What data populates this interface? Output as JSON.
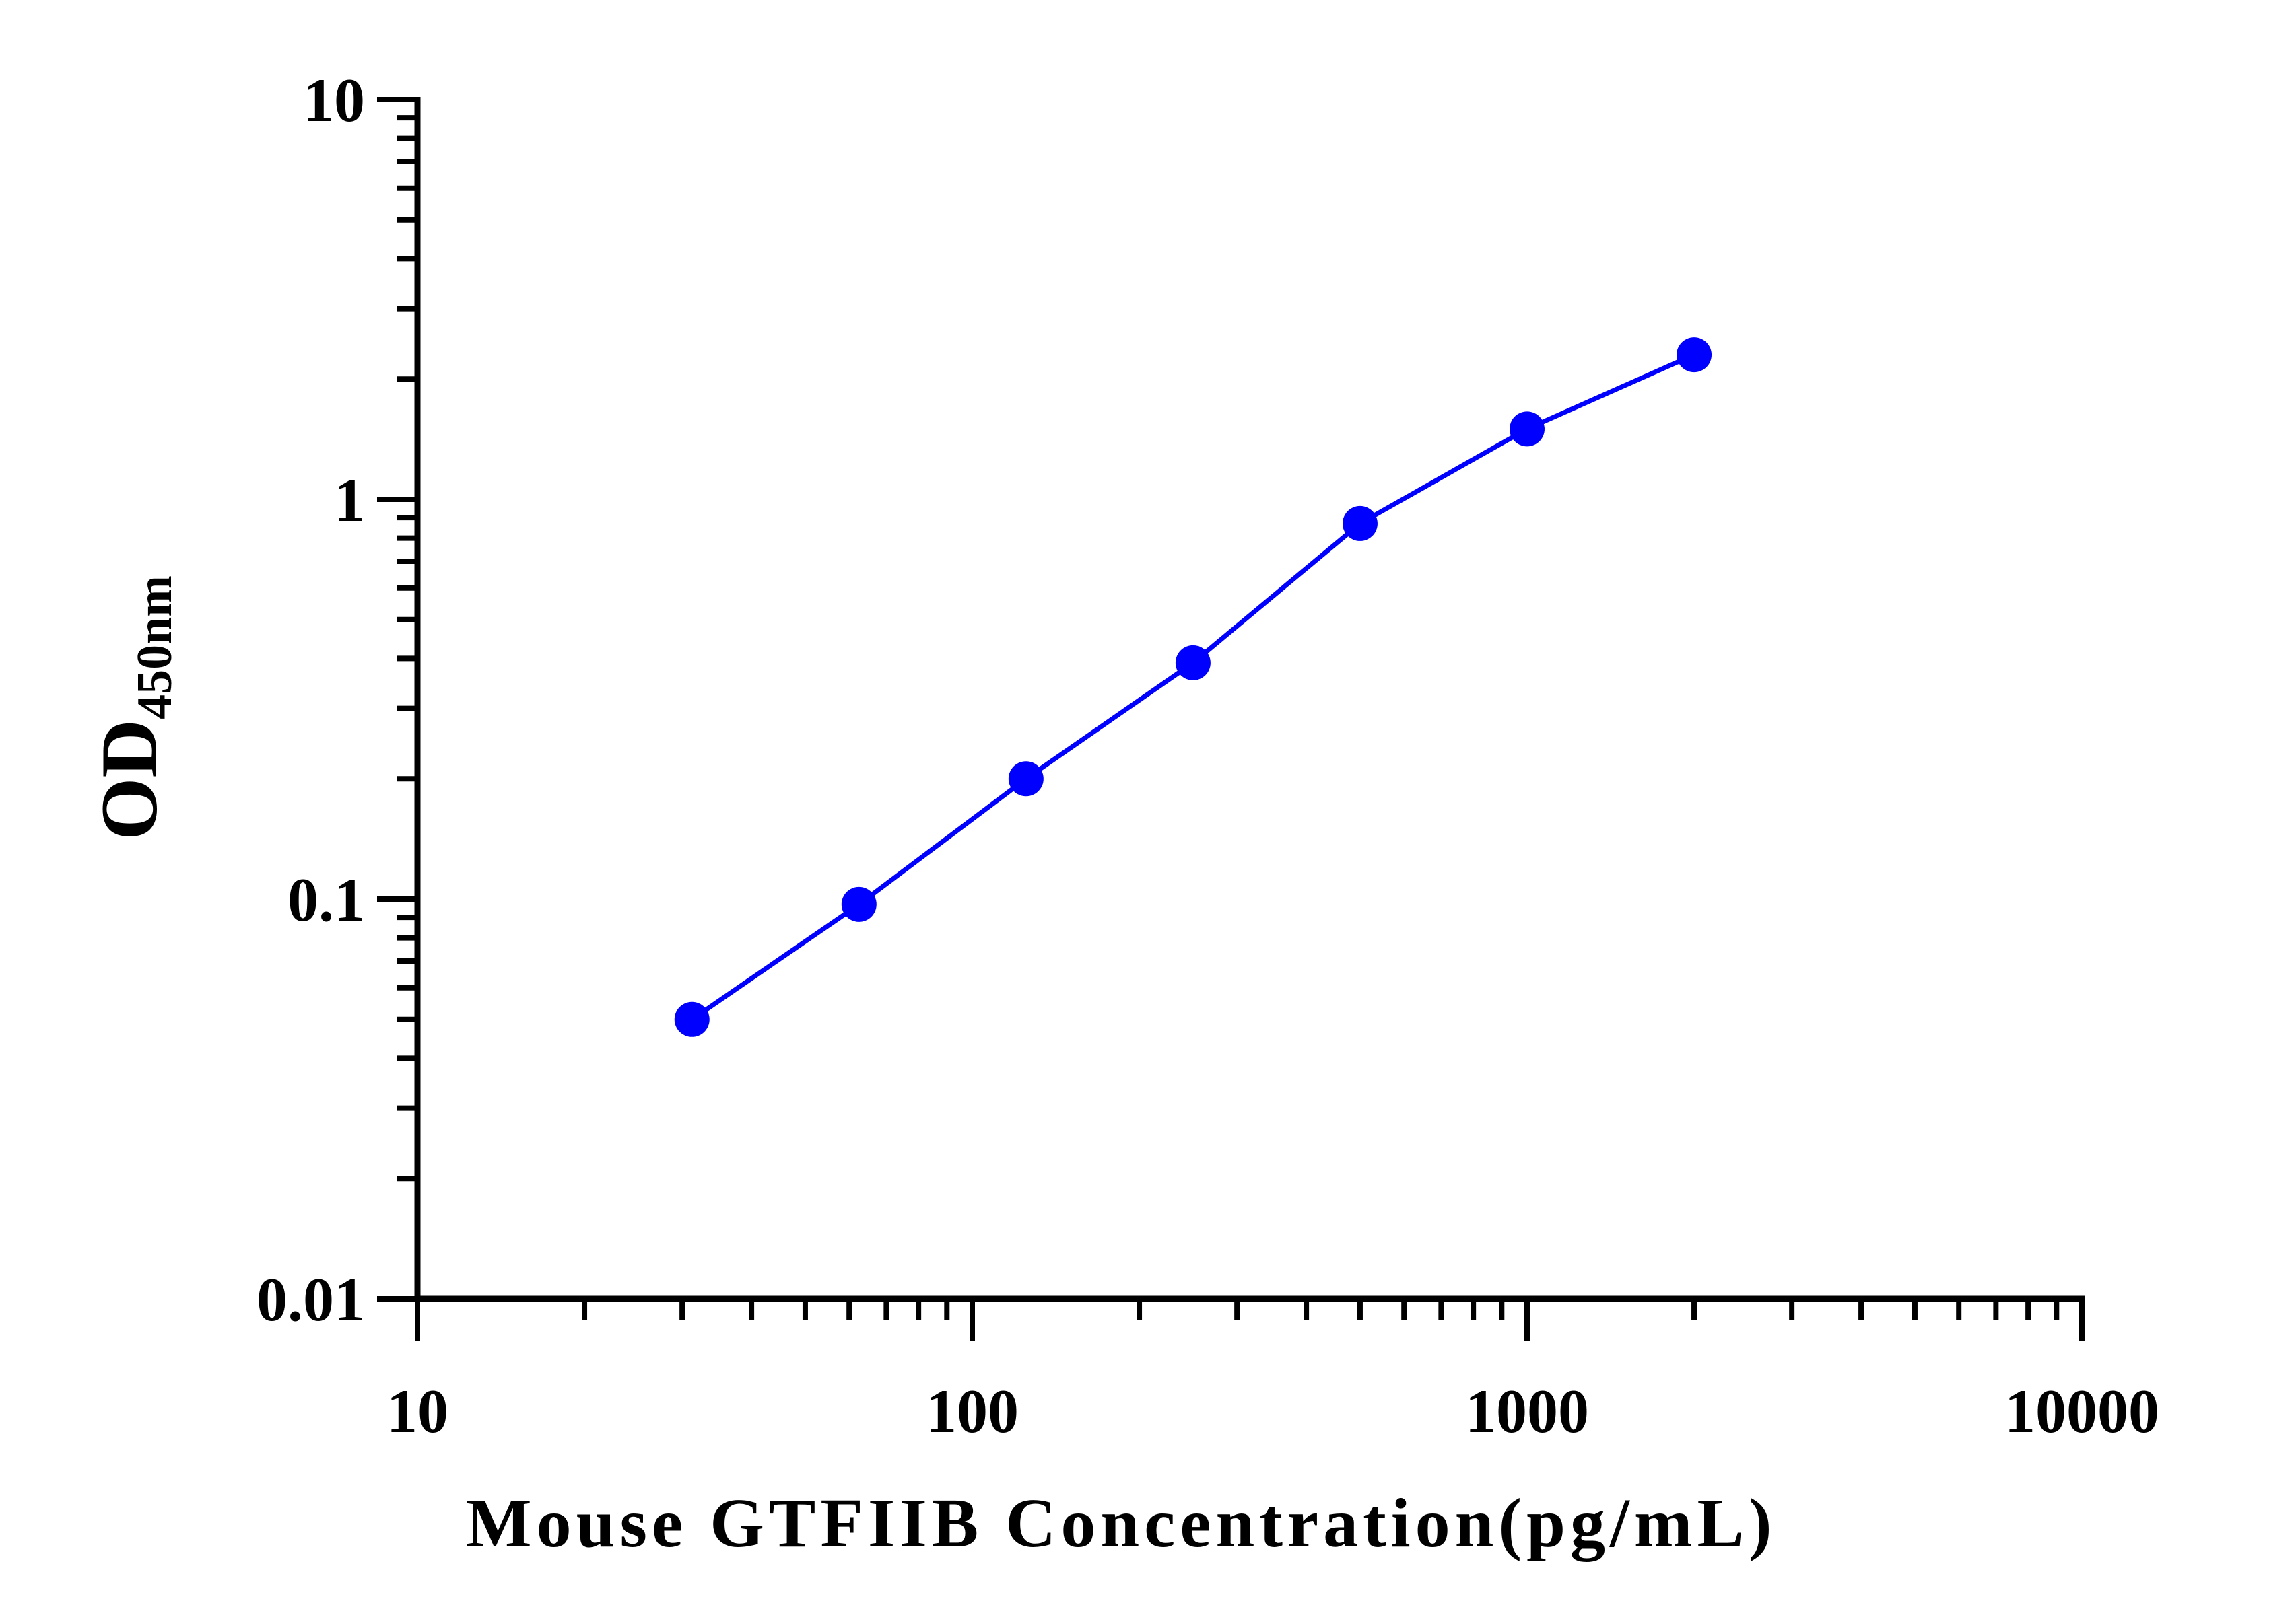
{
  "chart_data": {
    "type": "line",
    "xlabel": "Mouse GTFIIB Concentration(pg/mL)",
    "ylabel": {
      "main": "OD",
      "subscript": "450nm"
    },
    "xscale": "log",
    "yscale": "log",
    "xlim": [
      10,
      10000
    ],
    "ylim": [
      0.01,
      10
    ],
    "x_tick_labels": [
      "10",
      "100",
      "1000",
      "10000"
    ],
    "y_tick_labels": [
      "0.01",
      "0.1",
      "1",
      "10"
    ],
    "grid": false,
    "series": [
      {
        "color": "#0000ff",
        "x": [
          31.25,
          62.5,
          125,
          250,
          500,
          1000,
          2000
        ],
        "y": [
          0.05,
          0.097,
          0.2,
          0.39,
          0.87,
          1.5,
          2.3
        ]
      }
    ]
  }
}
